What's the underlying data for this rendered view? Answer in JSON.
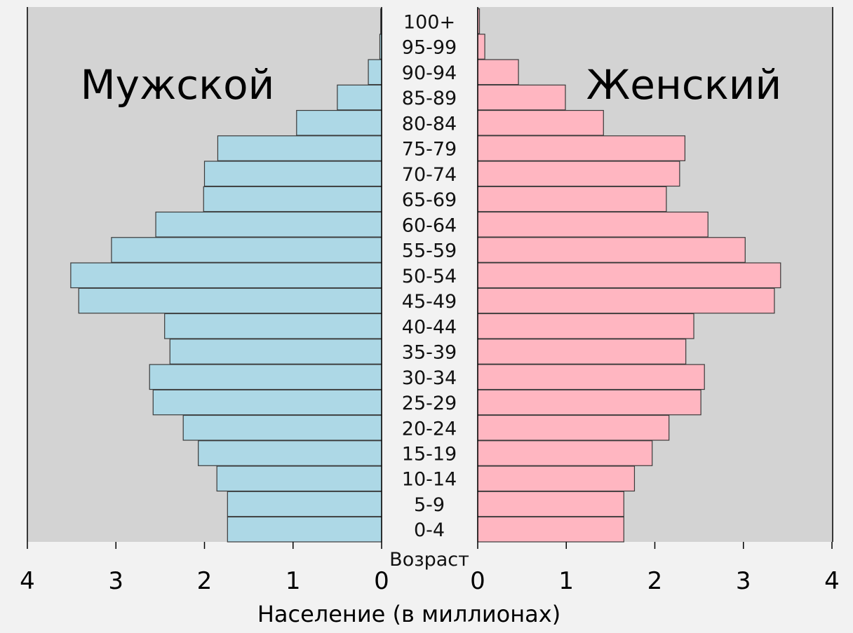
{
  "chart_data": {
    "type": "bar",
    "orientation": "horizontal",
    "categories": [
      "0-4",
      "5-9",
      "10-14",
      "15-19",
      "20-24",
      "25-29",
      "30-34",
      "35-39",
      "40-44",
      "45-49",
      "50-54",
      "55-59",
      "60-64",
      "65-69",
      "70-74",
      "75-79",
      "80-84",
      "85-89",
      "90-94",
      "95-99",
      "100+"
    ],
    "center_label": "Возраст",
    "xlabel": "Население (в миллионах)",
    "xlim": [
      0,
      4
    ],
    "x_ticks": [
      "0",
      "1",
      "2",
      "3",
      "4"
    ],
    "series": [
      {
        "name": "Мужской",
        "side": "left",
        "color": "#add8e6",
        "values": [
          1.74,
          1.74,
          1.86,
          2.07,
          2.24,
          2.58,
          2.62,
          2.39,
          2.45,
          3.42,
          3.51,
          3.05,
          2.55,
          2.01,
          2.0,
          1.85,
          0.96,
          0.5,
          0.15,
          0.02,
          0.01
        ]
      },
      {
        "name": "Женский",
        "side": "right",
        "color": "#ffb6c1",
        "values": [
          1.65,
          1.65,
          1.77,
          1.97,
          2.16,
          2.52,
          2.56,
          2.35,
          2.44,
          3.35,
          3.42,
          3.02,
          2.6,
          2.13,
          2.28,
          2.34,
          1.42,
          0.99,
          0.46,
          0.08,
          0.02
        ]
      }
    ],
    "panel_color": "#d3d3d3",
    "grid": false,
    "legend": "none"
  }
}
